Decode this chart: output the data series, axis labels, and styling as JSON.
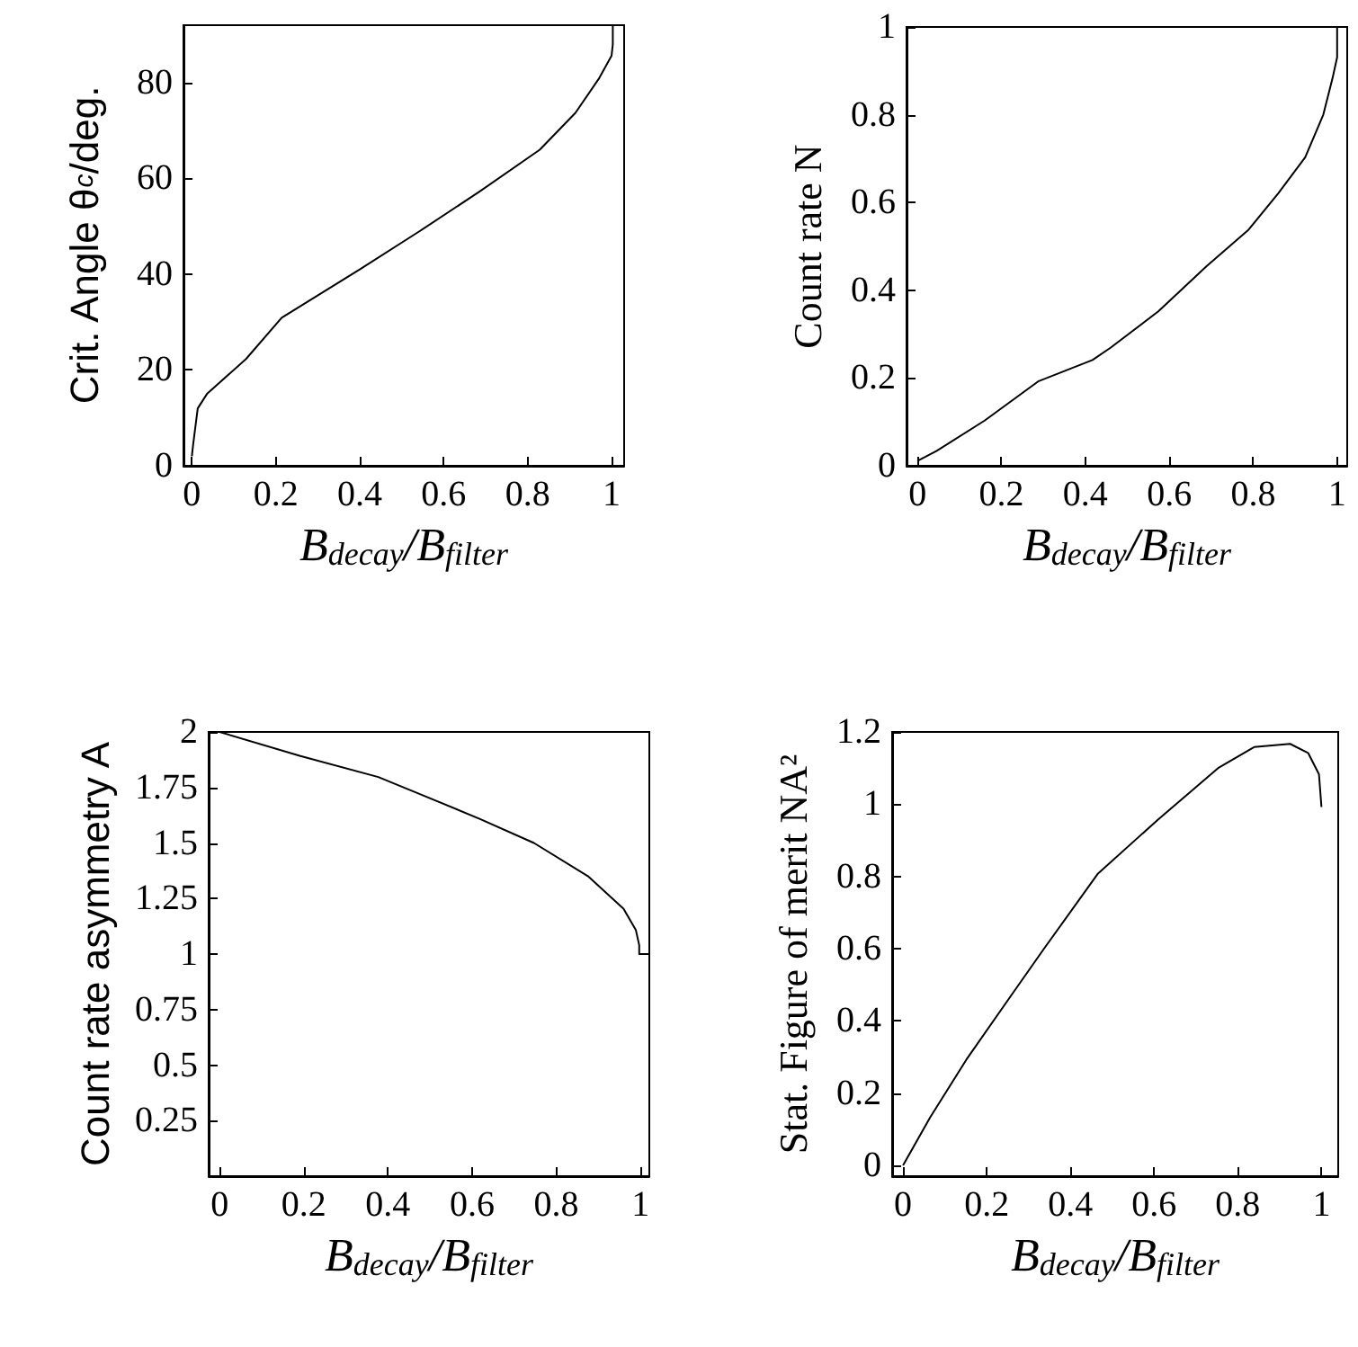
{
  "chart_data": [
    {
      "type": "line",
      "ylabel": "Crit. Angle θ$_{c}$/deg.",
      "xlabel": "B$_{decay}$/B$_{filter}$",
      "color": "#000000",
      "xlim": [
        -0.02,
        1.03
      ],
      "ylim": [
        0,
        92
      ],
      "xticks": [
        0,
        0.2,
        0.4,
        0.6,
        0.8,
        1
      ],
      "yticks": [
        0,
        20,
        40,
        60,
        80
      ],
      "x": [
        0,
        0.003,
        0.014,
        0.036,
        0.129,
        0.214,
        0.4,
        0.543,
        0.686,
        0.829,
        0.914,
        0.971,
        1.0,
        1.003,
        1.003
      ],
      "values": [
        2,
        4.4,
        12,
        15,
        22.3,
        30.9,
        41,
        49,
        57.3,
        66,
        73.7,
        81,
        85.6,
        88,
        92
      ]
    },
    {
      "type": "line",
      "ylabel": "Count rate N",
      "xlabel": "B$_{decay}$/B$_{filter}$",
      "color": "#000000",
      "xlim": [
        -0.026,
        1.024
      ],
      "ylim": [
        0,
        1
      ],
      "xticks": [
        0,
        0.2,
        0.4,
        0.6,
        0.8,
        1
      ],
      "yticks": [
        0,
        0.2,
        0.4,
        0.6,
        0.8,
        1
      ],
      "x": [
        0,
        0.046,
        0.16,
        0.289,
        0.417,
        0.46,
        0.574,
        0.689,
        0.789,
        0.86,
        0.924,
        0.967,
        0.989,
        1.0,
        1.0
      ],
      "values": [
        0.011,
        0.034,
        0.103,
        0.193,
        0.241,
        0.269,
        0.352,
        0.455,
        0.538,
        0.621,
        0.703,
        0.8,
        0.883,
        0.931,
        1
      ]
    },
    {
      "type": "line",
      "ylabel": "Count rate asymmetry A",
      "xlabel": "B$_{decay}$/B$_{filter}$",
      "color": "#000000",
      "xlim": [
        -0.026,
        1.021
      ],
      "ylim": [
        0,
        2
      ],
      "xticks": [
        0,
        0.2,
        0.4,
        0.6,
        0.8,
        1
      ],
      "yticks": [
        0.25,
        0.5,
        0.75,
        1,
        1.25,
        1.5,
        1.75,
        2
      ],
      "x": [
        0,
        0.192,
        0.377,
        0.498,
        0.619,
        0.747,
        0.875,
        0.96,
        0.989,
        0.997,
        0.997,
        1.021
      ],
      "values": [
        2,
        1.892,
        1.797,
        1.703,
        1.608,
        1.5,
        1.351,
        1.203,
        1.108,
        1.04,
        1.0,
        1.0
      ]
    },
    {
      "type": "line",
      "ylabel": "Stat. Figure of merit NA²",
      "xlabel": "B$_{decay}$/B$_{filter}$",
      "color": "#000000",
      "xlim": [
        -0.026,
        1.04
      ],
      "ylim": [
        -0.03,
        1.2
      ],
      "xticks": [
        0,
        0.2,
        0.4,
        0.6,
        0.8,
        1
      ],
      "yticks": [
        0,
        0.2,
        0.4,
        0.6,
        0.8,
        1,
        1.2
      ],
      "x": [
        0,
        0.065,
        0.151,
        0.251,
        0.337,
        0.466,
        0.61,
        0.753,
        0.839,
        0.925,
        0.968,
        0.994,
        1.0
      ],
      "values": [
        0,
        0.133,
        0.292,
        0.458,
        0.6,
        0.808,
        0.958,
        1.1,
        1.158,
        1.167,
        1.142,
        1.083,
        0.992
      ]
    }
  ]
}
